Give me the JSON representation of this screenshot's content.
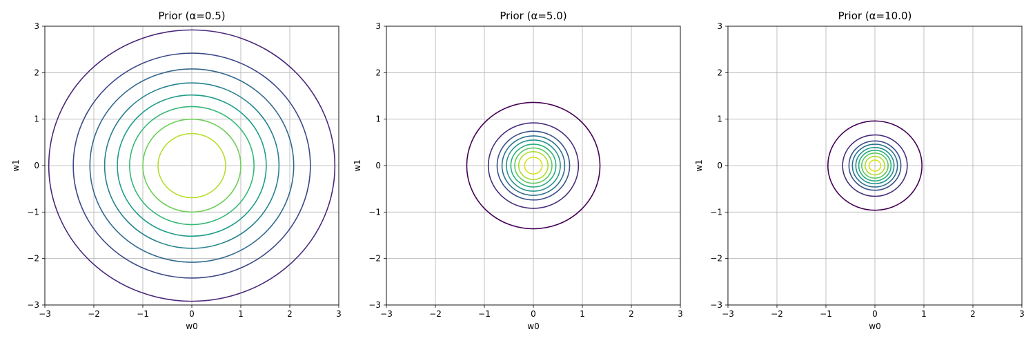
{
  "chart_data": [
    {
      "type": "contour",
      "title": "Prior (α=0.5)",
      "xlabel": "w0",
      "ylabel": "w1",
      "xlim": [
        -3,
        3
      ],
      "ylim": [
        -3,
        3
      ],
      "xticks": [
        "−3",
        "−2",
        "−1",
        "0",
        "1",
        "2",
        "3"
      ],
      "yticks": [
        "−3",
        "−2",
        "−1",
        "0",
        "1",
        "2",
        "3"
      ],
      "grid": true,
      "colormap": "viridis",
      "center": [
        0,
        0
      ],
      "contour_radii": [
        2.92,
        2.42,
        2.08,
        1.78,
        1.52,
        1.27,
        1.0,
        0.69
      ],
      "contour_colors": [
        "#482878",
        "#3e4a89",
        "#31688e",
        "#26828e",
        "#1f9e89",
        "#35b779",
        "#6ece58",
        "#b5de2b"
      ]
    },
    {
      "type": "contour",
      "title": "Prior (α=5.0)",
      "xlabel": "w0",
      "ylabel": "w1",
      "xlim": [
        -3,
        3
      ],
      "ylim": [
        -3,
        3
      ],
      "xticks": [
        "−3",
        "−2",
        "−1",
        "0",
        "1",
        "2",
        "3"
      ],
      "yticks": [
        "−3",
        "−2",
        "−1",
        "0",
        "1",
        "2",
        "3"
      ],
      "grid": true,
      "colormap": "viridis",
      "center": [
        0,
        0
      ],
      "contour_radii": [
        1.36,
        0.92,
        0.74,
        0.64,
        0.55,
        0.46,
        0.38,
        0.3,
        0.18
      ],
      "contour_colors": [
        "#440154",
        "#472d7b",
        "#3b528b",
        "#2c728e",
        "#21918c",
        "#28ae80",
        "#5ec962",
        "#addc30",
        "#d8e219"
      ]
    },
    {
      "type": "contour",
      "title": "Prior (α=10.0)",
      "xlabel": "w0",
      "ylabel": "w1",
      "xlim": [
        -3,
        3
      ],
      "ylim": [
        -3,
        3
      ],
      "xticks": [
        "−3",
        "−2",
        "−1",
        "0",
        "1",
        "2",
        "3"
      ],
      "yticks": [
        "−3",
        "−2",
        "−1",
        "0",
        "1",
        "2",
        "3"
      ],
      "grid": true,
      "colormap": "viridis",
      "center": [
        0,
        0
      ],
      "contour_radii": [
        0.96,
        0.66,
        0.53,
        0.46,
        0.39,
        0.33,
        0.27,
        0.2,
        0.12
      ],
      "contour_colors": [
        "#440154",
        "#472d7b",
        "#3b528b",
        "#2c728e",
        "#21918c",
        "#28ae80",
        "#5ec962",
        "#addc30",
        "#d8e219"
      ]
    }
  ]
}
